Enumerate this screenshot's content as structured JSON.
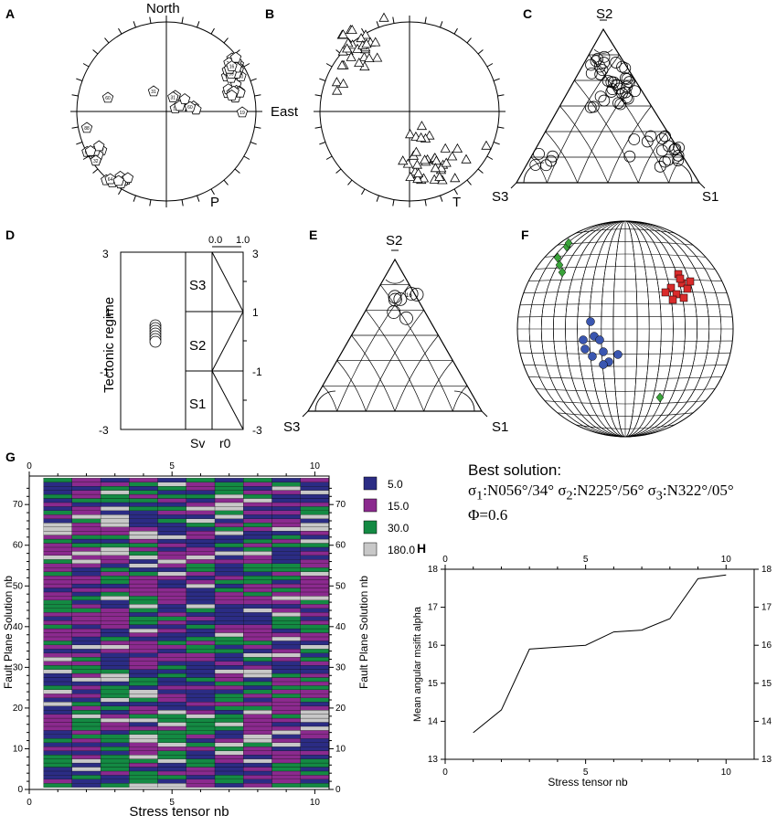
{
  "panels": {
    "A": {
      "letter": "A",
      "north": "North",
      "east": "East",
      "axis": "P",
      "labels": [
        "11",
        "70",
        "31",
        "60",
        "88",
        "36",
        "50",
        "28",
        "13",
        "59",
        "24",
        "16",
        "27",
        "69",
        "32",
        "18",
        "19",
        "64"
      ]
    },
    "B": {
      "letter": "B",
      "axis": "T"
    },
    "C": {
      "letter": "C",
      "s1": "S1",
      "s2": "S2",
      "s3": "S3"
    },
    "D": {
      "letter": "D",
      "ylabel": "Tectonic regime",
      "ticks_left": [
        "3",
        "1",
        "-1",
        "-3"
      ],
      "ticks_right": [
        "3",
        "1",
        "-1",
        "-3"
      ],
      "top_ticks": [
        "0.0",
        "1.0"
      ],
      "boxes": [
        "S3",
        "S2",
        "S1"
      ],
      "sv": "Sv",
      "r0": "r0"
    },
    "E": {
      "letter": "E",
      "s1": "S1",
      "s2": "S2",
      "s3": "S3",
      "label": "16"
    },
    "F": {
      "letter": "F"
    },
    "G": {
      "letter": "G"
    },
    "H": {
      "letter": "H"
    }
  },
  "best_solution": {
    "title": "Best solution:",
    "line1": "σ1:N056°/34° σ2:N225°/56° σ3:N322°/05°",
    "s1": "1",
    "s1v": ":N056°/34° σ",
    "s2": "2",
    "s2v": ":N225°/56° σ",
    "s3": "3",
    "s3v": ":N322°/05°",
    "phi": "Φ=0.6"
  },
  "chart_data": [
    {
      "type": "heatmap",
      "panel": "G",
      "xlabel": "Stress tensor nb",
      "ylabel": "Fault Plane Solution nb",
      "x_ticks": [
        "0",
        "5",
        "10"
      ],
      "y_ticks": [
        "0",
        "10",
        "20",
        "30",
        "40",
        "50",
        "60",
        "70"
      ],
      "xlim": [
        0,
        10.5
      ],
      "ylim": [
        0,
        77
      ],
      "n_columns": 10,
      "n_rows": 76,
      "legend": [
        {
          "value": "5.0",
          "color": "#2b2c84"
        },
        {
          "value": "15.0",
          "color": "#8b2a8e"
        },
        {
          "value": "30.0",
          "color": "#148a43"
        },
        {
          "value": "180.0",
          "color": "#c8c8c8"
        }
      ]
    },
    {
      "type": "line",
      "panel": "H",
      "xlabel": "Stress tensor nb",
      "ylabel": "Mean angular msifit alpha",
      "x": [
        1,
        2,
        3,
        4,
        5,
        6,
        7,
        8,
        9,
        10
      ],
      "values": [
        13.7,
        14.3,
        15.9,
        15.95,
        16.0,
        16.35,
        16.4,
        16.7,
        17.75,
        17.85
      ],
      "xlim": [
        0,
        11
      ],
      "ylim": [
        13,
        18
      ],
      "x_ticks": [
        "0",
        "5",
        "10"
      ],
      "y_ticks": [
        "13",
        "14",
        "15",
        "16",
        "17",
        "18"
      ]
    }
  ]
}
